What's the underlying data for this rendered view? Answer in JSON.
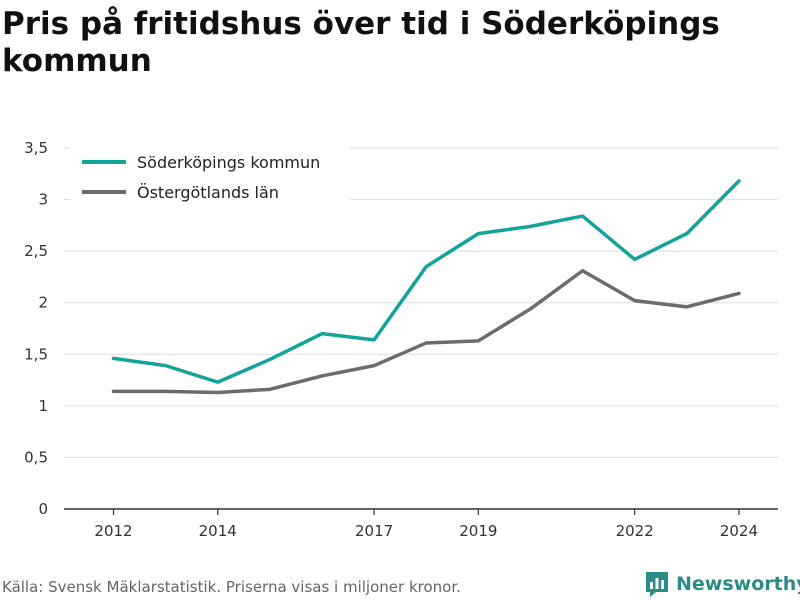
{
  "title": "Pris på fritidshus över tid i Söderköpings kommun",
  "source": "Källa: Svensk Mäklarstatistik. Priserna visas i miljoner kronor.",
  "brand": {
    "name": "Newsworthy",
    "icon": "newsworthy-logo-icon"
  },
  "colors": {
    "series1": "#12a39a",
    "series2": "#6b6b72",
    "grid": "#dddddd",
    "axis": "#333333"
  },
  "chart_data": {
    "type": "line",
    "title": "Pris på fritidshus över tid i Söderköpings kommun",
    "xlabel": "",
    "ylabel": "",
    "x": [
      2012,
      2013,
      2014,
      2015,
      2016,
      2017,
      2018,
      2019,
      2020,
      2021,
      2022,
      2023,
      2024
    ],
    "x_tick_labels": [
      "2012",
      "2014",
      "2017",
      "2019",
      "2022",
      "2024"
    ],
    "y_tick_labels": [
      "0",
      "0,5",
      "1",
      "1,5",
      "2",
      "2,5",
      "3",
      "3,5"
    ],
    "ylim": [
      0,
      3.5
    ],
    "grid": true,
    "legend": "top-left",
    "series": [
      {
        "name": "Söderköpings kommun",
        "values": [
          1.46,
          1.39,
          1.23,
          1.45,
          1.7,
          1.64,
          2.35,
          2.67,
          2.74,
          2.84,
          2.42,
          2.67,
          3.18
        ]
      },
      {
        "name": "Östergötlands län",
        "values": [
          1.14,
          1.14,
          1.13,
          1.16,
          1.29,
          1.39,
          1.61,
          1.63,
          1.94,
          2.31,
          2.02,
          1.96,
          2.09
        ]
      }
    ]
  }
}
